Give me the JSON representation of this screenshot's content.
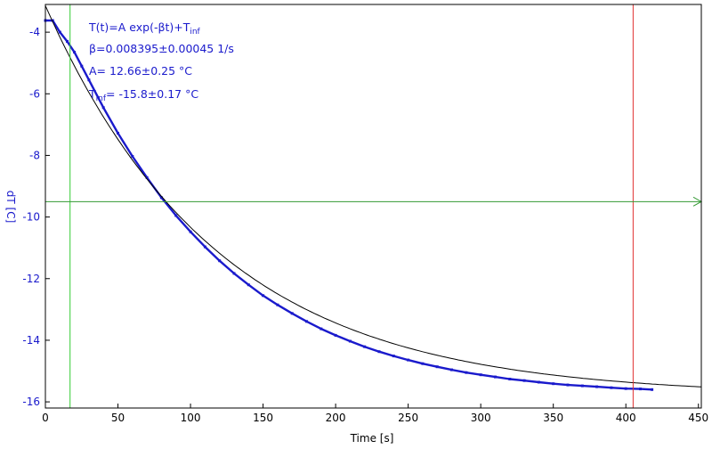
{
  "chart_data": {
    "type": "scatter",
    "title": "",
    "xlabel": "Time [s]",
    "ylabel": "dT [C]",
    "xlim": [
      0,
      452
    ],
    "ylim": [
      -16.2,
      -3.1
    ],
    "xticks": [
      0,
      50,
      100,
      150,
      200,
      250,
      300,
      350,
      400,
      450
    ],
    "yticks": [
      -16,
      -14,
      -12,
      -10,
      -8,
      -6,
      -4
    ],
    "grid": false,
    "legend": "none",
    "fit": {
      "model": "T(t)=A exp(-βt)+T_inf",
      "A": 12.66,
      "beta": 0.008395,
      "T_inf": -15.8,
      "x_range": [
        0,
        452
      ]
    },
    "series": [
      {
        "values": [
          {
            "x": 0,
            "y": -3.62
          },
          {
            "x": 5,
            "y": -3.62
          },
          {
            "x": 10,
            "y": -4.0
          },
          {
            "x": 15,
            "y": -4.3
          },
          {
            "x": 20,
            "y": -4.65
          },
          {
            "x": 25,
            "y": -5.1
          },
          {
            "x": 30,
            "y": -5.55
          },
          {
            "x": 40,
            "y": -6.45
          },
          {
            "x": 50,
            "y": -7.28
          },
          {
            "x": 60,
            "y": -8.03
          },
          {
            "x": 70,
            "y": -8.72
          },
          {
            "x": 80,
            "y": -9.37
          },
          {
            "x": 90,
            "y": -9.95
          },
          {
            "x": 100,
            "y": -10.48
          },
          {
            "x": 110,
            "y": -10.97
          },
          {
            "x": 120,
            "y": -11.42
          },
          {
            "x": 130,
            "y": -11.83
          },
          {
            "x": 140,
            "y": -12.2
          },
          {
            "x": 150,
            "y": -12.55
          },
          {
            "x": 160,
            "y": -12.85
          },
          {
            "x": 170,
            "y": -13.13
          },
          {
            "x": 180,
            "y": -13.39
          },
          {
            "x": 190,
            "y": -13.63
          },
          {
            "x": 200,
            "y": -13.84
          },
          {
            "x": 210,
            "y": -14.03
          },
          {
            "x": 220,
            "y": -14.21
          },
          {
            "x": 230,
            "y": -14.37
          },
          {
            "x": 240,
            "y": -14.51
          },
          {
            "x": 250,
            "y": -14.64
          },
          {
            "x": 260,
            "y": -14.76
          },
          {
            "x": 270,
            "y": -14.86
          },
          {
            "x": 280,
            "y": -14.96
          },
          {
            "x": 290,
            "y": -15.05
          },
          {
            "x": 300,
            "y": -15.12
          },
          {
            "x": 310,
            "y": -15.19
          },
          {
            "x": 320,
            "y": -15.26
          },
          {
            "x": 330,
            "y": -15.31
          },
          {
            "x": 340,
            "y": -15.36
          },
          {
            "x": 350,
            "y": -15.41
          },
          {
            "x": 360,
            "y": -15.45
          },
          {
            "x": 370,
            "y": -15.48
          },
          {
            "x": 380,
            "y": -15.51
          },
          {
            "x": 390,
            "y": -15.54
          },
          {
            "x": 400,
            "y": -15.57
          },
          {
            "x": 410,
            "y": -15.58
          },
          {
            "x": 418,
            "y": -15.6
          }
        ]
      }
    ],
    "cursors": {
      "vertical_green_x": 17,
      "vertical_red_x": 405,
      "horizontal_green_y": -9.5
    },
    "annotations": {
      "model": "T(t)=A exp(-βt)+T",
      "model_sub": "inf",
      "beta": "β=0.008395±0.00045 1/s",
      "A": "A= 12.66±0.25 °C",
      "tinf_prefix": "T",
      "tinf_sub": "inf",
      "tinf_value": "= -15.8±0.17 °C"
    },
    "colors": {
      "data": "#1a1acc",
      "fit": "#000000",
      "cursor_green": "#33cc33",
      "cursor_horizontal": "#339933",
      "cursor_red": "#e03030",
      "axis_text_y": "#1a1acc",
      "frame": "#000000"
    }
  }
}
